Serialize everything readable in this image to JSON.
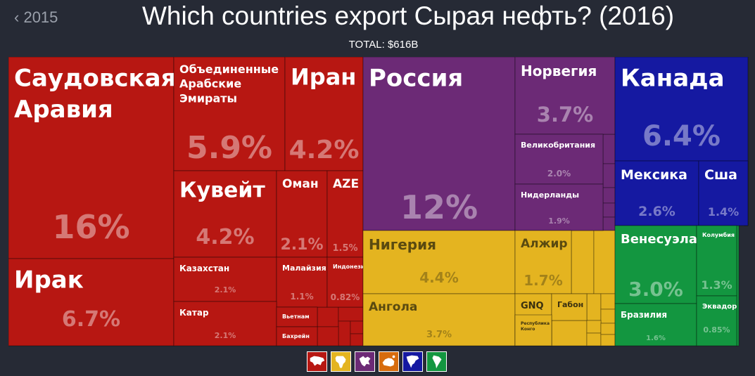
{
  "header": {
    "back_label": "2015",
    "title": "Which countries export Сырая нефть? (2016)",
    "total": "TOTAL: $616B"
  },
  "colors": {
    "asia": "#b71712",
    "europe": "#6c2a76",
    "africa": "#e4b420",
    "north_america": "#1519a1",
    "south_america": "#139640",
    "oceania": "#d76c0d",
    "background": "#262a35"
  },
  "legend": [
    {
      "name": "asia-icon",
      "color": "#b71712"
    },
    {
      "name": "africa-icon",
      "color": "#e4b420"
    },
    {
      "name": "europe-icon",
      "color": "#6c2a76"
    },
    {
      "name": "oceania-icon",
      "color": "#d76c0d"
    },
    {
      "name": "north-america-icon",
      "color": "#1519a1"
    },
    {
      "name": "south-america-icon",
      "color": "#139640"
    }
  ],
  "chart_data": {
    "type": "treemap",
    "title": "Which countries export Сырая нефть? (2016)",
    "total": "$616B",
    "unit": "% of total exports",
    "items": [
      {
        "label": "Саудовская Аравия",
        "value": 16,
        "display": "16%",
        "region": "asia"
      },
      {
        "label": "Ирак",
        "value": 6.7,
        "display": "6.7%",
        "region": "asia"
      },
      {
        "label": "Объединенные Арабские Эмираты",
        "value": 5.9,
        "display": "5.9%",
        "region": "asia"
      },
      {
        "label": "Иран",
        "value": 4.2,
        "display": "4.2%",
        "region": "asia"
      },
      {
        "label": "Кувейт",
        "value": 4.2,
        "display": "4.2%",
        "region": "asia"
      },
      {
        "label": "Оман",
        "value": 2.1,
        "display": "2.1%",
        "region": "asia"
      },
      {
        "label": "AZE",
        "value": 1.5,
        "display": "1.5%",
        "region": "asia"
      },
      {
        "label": "Казахстан",
        "value": 2.1,
        "display": "2.1%",
        "region": "asia"
      },
      {
        "label": "Малайзия",
        "value": 1.1,
        "display": "1.1%",
        "region": "asia"
      },
      {
        "label": "Индонезия",
        "value": 0.82,
        "display": "0.82%",
        "region": "asia"
      },
      {
        "label": "Катар",
        "value": 2.1,
        "display": "2.1%",
        "region": "asia"
      },
      {
        "label": "Вьетнам",
        "value": null,
        "display": "",
        "region": "asia"
      },
      {
        "label": "Бахрейн",
        "value": null,
        "display": "",
        "region": "asia"
      },
      {
        "label": "Россия",
        "value": 12,
        "display": "12%",
        "region": "europe"
      },
      {
        "label": "Норвегия",
        "value": 3.7,
        "display": "3.7%",
        "region": "europe"
      },
      {
        "label": "Великобритания",
        "value": 2.0,
        "display": "2.0%",
        "region": "europe"
      },
      {
        "label": "Нидерланды",
        "value": 1.9,
        "display": "1.9%",
        "region": "europe"
      },
      {
        "label": "Нигерия",
        "value": 4.4,
        "display": "4.4%",
        "region": "africa"
      },
      {
        "label": "Ангола",
        "value": 3.7,
        "display": "3.7%",
        "region": "africa"
      },
      {
        "label": "Алжир",
        "value": 1.7,
        "display": "1.7%",
        "region": "africa"
      },
      {
        "label": "GNQ",
        "value": null,
        "display": "",
        "region": "africa"
      },
      {
        "label": "Габон",
        "value": null,
        "display": "",
        "region": "africa"
      },
      {
        "label": "Республика Конго",
        "value": null,
        "display": "",
        "region": "africa"
      },
      {
        "label": "Канада",
        "value": 6.4,
        "display": "6.4%",
        "region": "north_america"
      },
      {
        "label": "Мексика",
        "value": 2.6,
        "display": "2.6%",
        "region": "north_america"
      },
      {
        "label": "США",
        "value": 1.4,
        "display": "1.4%",
        "region": "north_america",
        "shown_label": "Сша"
      },
      {
        "label": "Венесуэла",
        "value": 3.0,
        "display": "3.0%",
        "region": "south_america"
      },
      {
        "label": "Колумбия",
        "value": 1.3,
        "display": "1.3%",
        "region": "south_america"
      },
      {
        "label": "Бразилия",
        "value": 1.6,
        "display": "1.6%",
        "region": "south_america"
      },
      {
        "label": "Эквадор",
        "value": 0.85,
        "display": "0.85%",
        "region": "south_america"
      }
    ]
  }
}
